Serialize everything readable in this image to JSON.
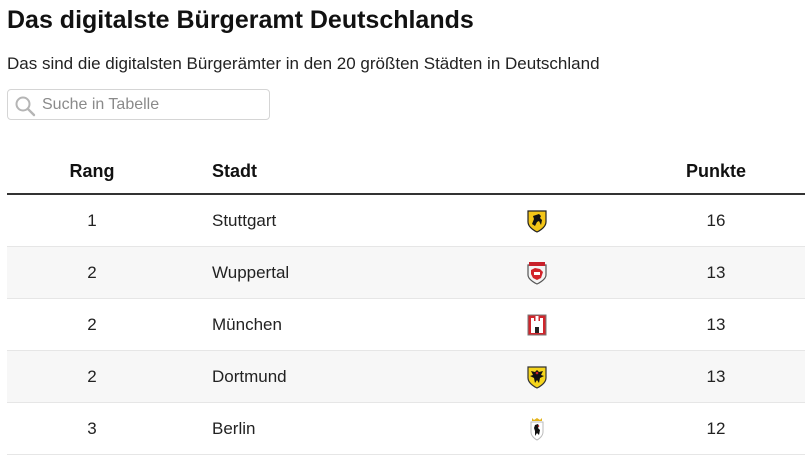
{
  "header": {
    "title": "Das digitalste Bürgeramt Deutschlands",
    "subtitle": "Das sind die digitalsten Bürgerämter in den 20 größten Städten in Deutschland"
  },
  "search": {
    "placeholder": "Suche in Tabelle",
    "icon": "search-icon"
  },
  "table": {
    "columns": {
      "rang": "Rang",
      "stadt": "Stadt",
      "wappen": "",
      "punkte": "Punkte"
    },
    "rows": [
      {
        "rang": "1",
        "stadt": "Stuttgart",
        "crest": "stuttgart-crest-icon",
        "punkte": "16"
      },
      {
        "rang": "2",
        "stadt": "Wuppertal",
        "crest": "wuppertal-crest-icon",
        "punkte": "13"
      },
      {
        "rang": "2",
        "stadt": "München",
        "crest": "muenchen-crest-icon",
        "punkte": "13"
      },
      {
        "rang": "2",
        "stadt": "Dortmund",
        "crest": "dortmund-crest-icon",
        "punkte": "13"
      },
      {
        "rang": "3",
        "stadt": "Berlin",
        "crest": "berlin-crest-icon",
        "punkte": "12"
      }
    ]
  },
  "colors": {
    "header_rule": "#333333",
    "row_stripe": "#f7f7f7",
    "row_divider": "#e6e6e6"
  }
}
